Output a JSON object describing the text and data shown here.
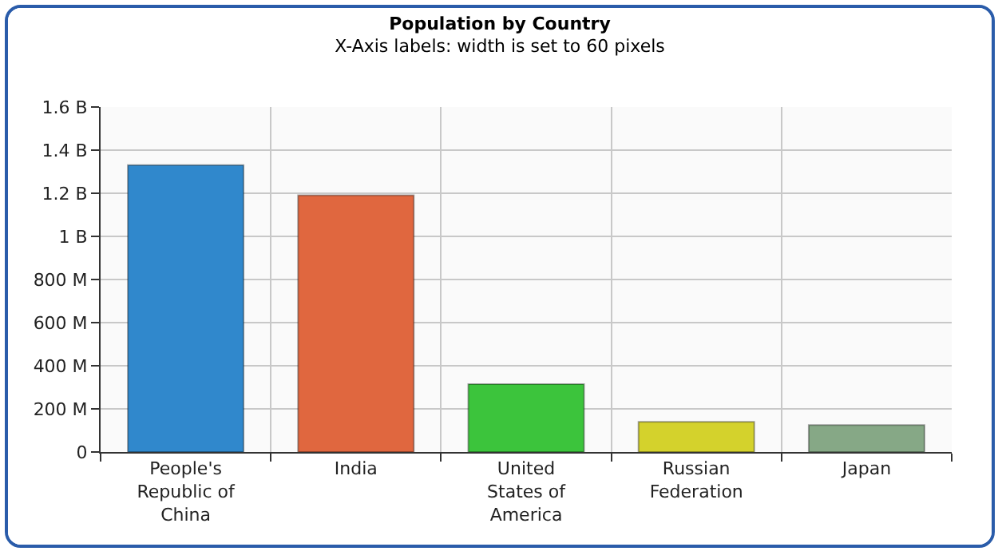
{
  "chart_data": {
    "type": "bar",
    "title": "Population by Country",
    "subtitle": "X-Axis labels: width is set to 60 pixels",
    "categories": [
      "People's Republic of China",
      "India",
      "United States of America",
      "Russian Federation",
      "Japan"
    ],
    "values": [
      1331000000,
      1191000000,
      315000000,
      140000000,
      125000000
    ],
    "colors": [
      "#3088cc",
      "#e0673f",
      "#3cc43c",
      "#d4d22c",
      "#86a886"
    ],
    "ylim": [
      0,
      1600000000
    ],
    "yticks": [
      {
        "value": 0,
        "label": "0"
      },
      {
        "value": 200000000,
        "label": "200 M"
      },
      {
        "value": 400000000,
        "label": "400 M"
      },
      {
        "value": 600000000,
        "label": "600 M"
      },
      {
        "value": 800000000,
        "label": "800 M"
      },
      {
        "value": 1000000000,
        "label": "1 B"
      },
      {
        "value": 1200000000,
        "label": "1.2 B"
      },
      {
        "value": 1400000000,
        "label": "1.4 B"
      },
      {
        "value": 1600000000,
        "label": "1.6 B"
      }
    ],
    "grid": true
  }
}
